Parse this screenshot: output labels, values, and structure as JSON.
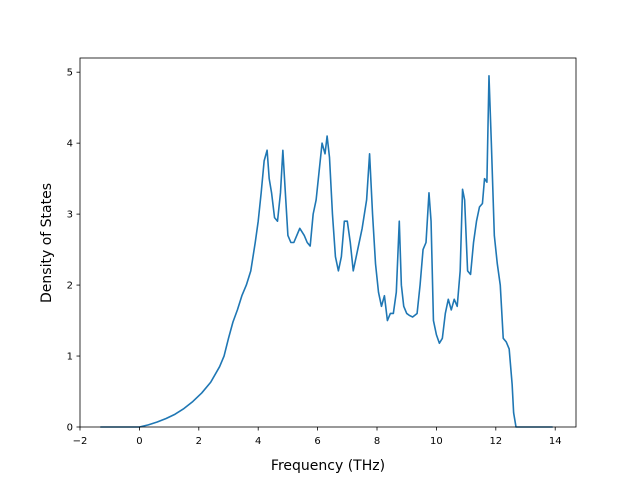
{
  "chart_data": {
    "type": "line",
    "title": "",
    "xlabel": "Frequency (THz)",
    "ylabel": "Density of States",
    "xlim": [
      -2,
      14.7
    ],
    "ylim": [
      0,
      5.2
    ],
    "xticks": [
      -2,
      0,
      2,
      4,
      6,
      8,
      10,
      12,
      14
    ],
    "yticks": [
      0,
      1,
      2,
      3,
      4,
      5
    ],
    "xtick_labels": [
      "−2",
      "0",
      "2",
      "4",
      "6",
      "8",
      "10",
      "12",
      "14"
    ],
    "ytick_labels": [
      "0",
      "1",
      "2",
      "3",
      "4",
      "5"
    ],
    "grid": false,
    "legend": "none",
    "series": [
      {
        "name": "",
        "color": "#1f77b4",
        "x": [
          -1.3,
          -0.8,
          0.0,
          0.3,
          0.6,
          0.9,
          1.2,
          1.5,
          1.8,
          2.1,
          2.4,
          2.7,
          2.85,
          3.0,
          3.15,
          3.3,
          3.45,
          3.6,
          3.75,
          3.9,
          4.0,
          4.1,
          4.2,
          4.3,
          4.37,
          4.45,
          4.55,
          4.65,
          4.75,
          4.83,
          4.9,
          5.0,
          5.1,
          5.2,
          5.3,
          5.4,
          5.55,
          5.65,
          5.75,
          5.85,
          5.95,
          6.05,
          6.15,
          6.25,
          6.32,
          6.4,
          6.5,
          6.6,
          6.7,
          6.8,
          6.9,
          7.0,
          7.1,
          7.2,
          7.35,
          7.5,
          7.65,
          7.75,
          7.85,
          7.95,
          8.05,
          8.15,
          8.25,
          8.35,
          8.45,
          8.55,
          8.65,
          8.75,
          8.82,
          8.9,
          9.0,
          9.1,
          9.2,
          9.35,
          9.45,
          9.55,
          9.65,
          9.75,
          9.82,
          9.9,
          10.0,
          10.1,
          10.2,
          10.3,
          10.4,
          10.5,
          10.6,
          10.7,
          10.8,
          10.88,
          10.95,
          11.05,
          11.15,
          11.25,
          11.35,
          11.45,
          11.55,
          11.62,
          11.7,
          11.77,
          11.85,
          11.95,
          12.05,
          12.15,
          12.25,
          12.35,
          12.45,
          12.55,
          12.6,
          12.68,
          13.0,
          13.5,
          13.9
        ],
        "y": [
          0.0,
          0.0,
          0.0,
          0.03,
          0.07,
          0.12,
          0.18,
          0.26,
          0.36,
          0.48,
          0.63,
          0.85,
          1.0,
          1.25,
          1.48,
          1.65,
          1.85,
          2.0,
          2.2,
          2.6,
          2.9,
          3.3,
          3.75,
          3.9,
          3.5,
          3.3,
          2.95,
          2.9,
          3.3,
          3.9,
          3.4,
          2.7,
          2.6,
          2.6,
          2.7,
          2.8,
          2.7,
          2.6,
          2.55,
          3.0,
          3.2,
          3.6,
          4.0,
          3.85,
          4.1,
          3.8,
          3.0,
          2.4,
          2.2,
          2.4,
          2.9,
          2.9,
          2.6,
          2.2,
          2.5,
          2.8,
          3.2,
          3.85,
          3.0,
          2.3,
          1.9,
          1.7,
          1.85,
          1.5,
          1.6,
          1.6,
          1.9,
          2.9,
          2.0,
          1.7,
          1.6,
          1.57,
          1.55,
          1.6,
          2.0,
          2.5,
          2.6,
          3.3,
          2.9,
          1.5,
          1.3,
          1.18,
          1.25,
          1.6,
          1.8,
          1.65,
          1.8,
          1.7,
          2.2,
          3.35,
          3.2,
          2.2,
          2.15,
          2.6,
          2.9,
          3.1,
          3.15,
          3.5,
          3.45,
          4.95,
          4.0,
          2.7,
          2.3,
          2.0,
          1.25,
          1.2,
          1.1,
          0.6,
          0.2,
          0.0,
          0.0,
          0.0,
          0.0
        ]
      }
    ]
  }
}
